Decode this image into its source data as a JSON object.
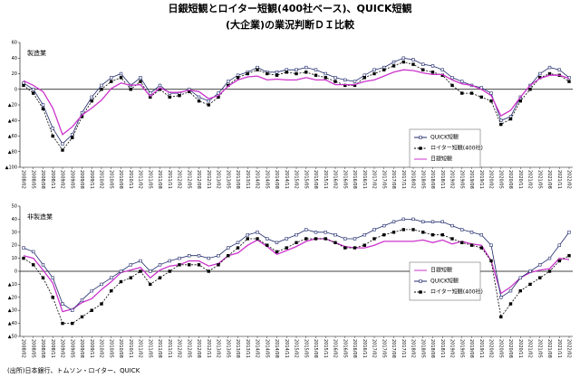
{
  "title": [
    "日銀短観とロイター短観(400社ベース)、QUICK短観",
    "(大企業)の業況判断ＤＩ比較"
  ],
  "source": "(出所)日本銀行、トムソン・ロイター、QUICK",
  "chart_data": [
    {
      "type": "line",
      "title": "製造業",
      "legend": "lower right",
      "grid": false,
      "x": [
        "2008/02",
        "2008/05",
        "2008/08",
        "2008/11",
        "2009/02",
        "2009/05",
        "2009/08",
        "2009/11",
        "2010/02",
        "2010/05",
        "2010/08",
        "2010/11",
        "2011/02",
        "2011/05",
        "2011/08",
        "2011/11",
        "2012/02",
        "2012/05",
        "2012/08",
        "2012/11",
        "2013/02",
        "2013/05",
        "2013/08",
        "2013/11",
        "2014/02",
        "2014/05",
        "2014/08",
        "2014/11",
        "2015/02",
        "2015/05",
        "2015/08",
        "2015/11",
        "2016/02",
        "2016/05",
        "2016/08",
        "2016/11",
        "2017/02",
        "2017/05",
        "2017/08",
        "2017/11",
        "2018/02",
        "2018/05",
        "2018/08",
        "2018/11",
        "2019/02",
        "2019/05",
        "2019/08",
        "2019/11",
        "2020/02",
        "2020/05",
        "2020/08",
        "2020/11",
        "2021/02",
        "2021/05",
        "2021/08",
        "2021/11",
        "2022/02"
      ],
      "ylim": [
        -100,
        60
      ],
      "yticks": [
        {
          "value": -100,
          "label": "▲100"
        },
        {
          "value": -80,
          "label": "▲80"
        },
        {
          "value": -60,
          "label": "▲60"
        },
        {
          "value": -40,
          "label": "▲40"
        },
        {
          "value": -20,
          "label": "▲20"
        },
        0,
        20,
        40,
        60
      ],
      "series": [
        {
          "name": "QUICK短観",
          "color": "#1f2a6b",
          "marker": "open-square",
          "dash": false,
          "values": [
            8,
            0,
            -20,
            -50,
            -70,
            -58,
            -30,
            -10,
            5,
            15,
            20,
            5,
            15,
            -5,
            5,
            -5,
            -5,
            0,
            -10,
            -15,
            -5,
            10,
            18,
            22,
            28,
            22,
            22,
            25,
            25,
            28,
            25,
            20,
            15,
            12,
            10,
            18,
            25,
            28,
            35,
            40,
            38,
            32,
            30,
            25,
            15,
            10,
            5,
            2,
            -5,
            -40,
            -35,
            -10,
            5,
            20,
            28,
            25,
            15
          ]
        },
        {
          "name": "ロイター短観(400社)",
          "color": "#000000",
          "marker": "filled-square",
          "dash": true,
          "values": [
            5,
            -5,
            -25,
            -60,
            -78,
            -62,
            -35,
            -15,
            0,
            10,
            15,
            0,
            10,
            -10,
            0,
            -10,
            -8,
            -3,
            -15,
            -20,
            -10,
            5,
            15,
            20,
            25,
            20,
            18,
            22,
            20,
            22,
            18,
            15,
            10,
            5,
            5,
            15,
            20,
            25,
            30,
            35,
            32,
            25,
            22,
            18,
            5,
            -5,
            -5,
            -10,
            -15,
            -45,
            -38,
            -15,
            0,
            15,
            20,
            18,
            10
          ]
        },
        {
          "name": "日銀短観",
          "color": "#cc33cc",
          "marker": "none",
          "dash": false,
          "values": [
            11,
            5,
            -3,
            -24,
            -58,
            -48,
            -33,
            -24,
            -14,
            1,
            8,
            5,
            6,
            -9,
            2,
            -4,
            -4,
            -1,
            -3,
            -12,
            -8,
            4,
            12,
            16,
            17,
            12,
            13,
            12,
            12,
            15,
            12,
            12,
            6,
            6,
            6,
            10,
            12,
            17,
            22,
            25,
            24,
            21,
            19,
            19,
            12,
            7,
            5,
            0,
            -8,
            -34,
            -27,
            -10,
            5,
            14,
            18,
            18,
            14
          ]
        }
      ]
    },
    {
      "type": "line",
      "title": "非製造業",
      "legend": "center right",
      "grid": false,
      "x": [
        "2008/02",
        "2008/05",
        "2008/08",
        "2008/11",
        "2009/02",
        "2009/05",
        "2009/08",
        "2009/11",
        "2010/02",
        "2010/05",
        "2010/08",
        "2010/11",
        "2011/02",
        "2011/05",
        "2011/08",
        "2011/11",
        "2012/02",
        "2012/05",
        "2012/08",
        "2012/11",
        "2013/02",
        "2013/05",
        "2013/08",
        "2013/11",
        "2014/02",
        "2014/05",
        "2014/08",
        "2014/11",
        "2015/02",
        "2015/05",
        "2015/08",
        "2015/11",
        "2016/02",
        "2016/05",
        "2016/08",
        "2016/11",
        "2017/02",
        "2017/05",
        "2017/08",
        "2017/11",
        "2018/02",
        "2018/05",
        "2018/08",
        "2018/11",
        "2019/02",
        "2019/05",
        "2019/08",
        "2019/11",
        "2020/02",
        "2020/05",
        "2020/08",
        "2020/11",
        "2021/02",
        "2021/05",
        "2021/08",
        "2021/11",
        "2022/02"
      ],
      "ylim": [
        -50,
        50
      ],
      "yticks": [
        {
          "value": -50,
          "label": "▲50"
        },
        {
          "value": -40,
          "label": "▲40"
        },
        {
          "value": -30,
          "label": "▲30"
        },
        {
          "value": -20,
          "label": "▲20"
        },
        {
          "value": -10,
          "label": "▲10"
        },
        0,
        10,
        20,
        30,
        40,
        50
      ],
      "series": [
        {
          "name": "日銀短観",
          "color": "#cc33cc",
          "marker": "none",
          "dash": false,
          "values": [
            12,
            10,
            1,
            -9,
            -31,
            -29,
            -24,
            -21,
            -14,
            -8,
            -1,
            1,
            3,
            -5,
            1,
            4,
            5,
            8,
            8,
            4,
            6,
            12,
            14,
            20,
            24,
            19,
            13,
            16,
            19,
            23,
            25,
            25,
            22,
            19,
            18,
            18,
            20,
            23,
            23,
            23,
            23,
            24,
            22,
            24,
            21,
            23,
            21,
            20,
            8,
            -17,
            -12,
            -5,
            -1,
            1,
            2,
            10,
            9
          ]
        },
        {
          "name": "QUICK短観",
          "color": "#1f2a6b",
          "marker": "open-square",
          "dash": false,
          "values": [
            18,
            15,
            5,
            -5,
            -25,
            -30,
            -22,
            -15,
            -10,
            -5,
            0,
            5,
            8,
            0,
            5,
            8,
            10,
            12,
            12,
            10,
            12,
            18,
            22,
            28,
            30,
            25,
            22,
            25,
            28,
            32,
            30,
            30,
            28,
            25,
            25,
            28,
            32,
            35,
            38,
            40,
            40,
            38,
            38,
            38,
            35,
            32,
            30,
            28,
            20,
            -20,
            -15,
            -5,
            0,
            5,
            10,
            20,
            30
          ]
        },
        {
          "name": "ロイター短観(400社)",
          "color": "#000000",
          "marker": "filled-square",
          "dash": true,
          "values": [
            10,
            5,
            -5,
            -20,
            -40,
            -40,
            -35,
            -30,
            -25,
            -15,
            -8,
            -5,
            0,
            -10,
            -5,
            0,
            5,
            5,
            5,
            0,
            5,
            12,
            18,
            25,
            25,
            20,
            15,
            18,
            22,
            25,
            25,
            25,
            22,
            18,
            18,
            20,
            25,
            28,
            30,
            32,
            32,
            30,
            28,
            28,
            25,
            22,
            20,
            18,
            8,
            -35,
            -25,
            -15,
            -10,
            -5,
            0,
            8,
            12
          ]
        }
      ]
    }
  ]
}
